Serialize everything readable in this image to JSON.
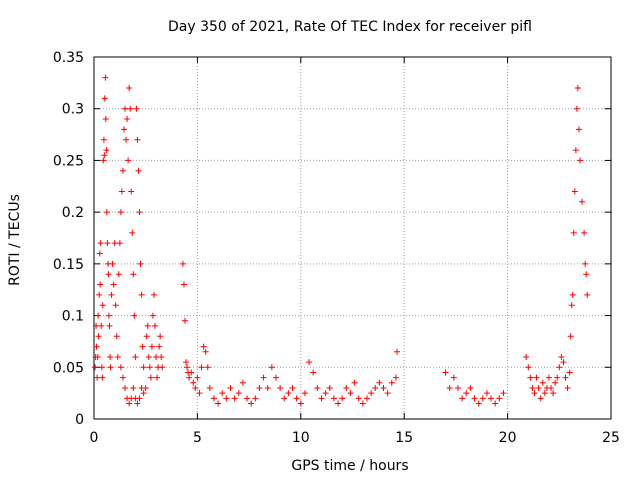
{
  "chart_data": {
    "type": "scatter",
    "title": "Day 350 of 2021, Rate Of TEC Index for receiver pifl",
    "xlabel": "GPS time / hours",
    "ylabel": "ROTI / TECUs",
    "xlim": [
      0,
      25
    ],
    "ylim": [
      0,
      0.35
    ],
    "x_ticks": [
      0,
      5,
      10,
      15,
      20,
      25
    ],
    "y_ticks": [
      0,
      0.05,
      0.1,
      0.15,
      0.2,
      0.25,
      0.3,
      0.35
    ],
    "x_tick_labels": [
      "0",
      "5",
      "10",
      "15",
      "20",
      "25"
    ],
    "y_tick_labels": [
      "0",
      "0.05",
      "0.1",
      "0.15",
      "0.2",
      "0.25",
      "0.3",
      "0.35"
    ],
    "grid": true,
    "marker": "+",
    "color": "#ff0000",
    "series": [
      {
        "name": "ROTI",
        "points": [
          [
            0.05,
            0.05
          ],
          [
            0.08,
            0.06
          ],
          [
            0.1,
            0.09
          ],
          [
            0.12,
            0.07
          ],
          [
            0.15,
            0.04
          ],
          [
            0.18,
            0.06
          ],
          [
            0.2,
            0.1
          ],
          [
            0.22,
            0.08
          ],
          [
            0.25,
            0.12
          ],
          [
            0.28,
            0.16
          ],
          [
            0.3,
            0.13
          ],
          [
            0.32,
            0.17
          ],
          [
            0.35,
            0.09
          ],
          [
            0.38,
            0.05
          ],
          [
            0.4,
            0.04
          ],
          [
            0.42,
            0.11
          ],
          [
            0.45,
            0.25
          ],
          [
            0.48,
            0.27
          ],
          [
            0.5,
            0.255
          ],
          [
            0.52,
            0.31
          ],
          [
            0.55,
            0.33
          ],
          [
            0.57,
            0.29
          ],
          [
            0.6,
            0.26
          ],
          [
            0.62,
            0.2
          ],
          [
            0.65,
            0.17
          ],
          [
            0.68,
            0.15
          ],
          [
            0.7,
            0.14
          ],
          [
            0.72,
            0.1
          ],
          [
            0.75,
            0.09
          ],
          [
            0.78,
            0.06
          ],
          [
            0.8,
            0.05
          ],
          [
            0.85,
            0.12
          ],
          [
            0.9,
            0.15
          ],
          [
            0.95,
            0.13
          ],
          [
            1.0,
            0.17
          ],
          [
            1.05,
            0.11
          ],
          [
            1.1,
            0.08
          ],
          [
            1.15,
            0.06
          ],
          [
            1.2,
            0.14
          ],
          [
            1.25,
            0.17
          ],
          [
            1.3,
            0.2
          ],
          [
            1.35,
            0.22
          ],
          [
            1.4,
            0.24
          ],
          [
            1.45,
            0.28
          ],
          [
            1.5,
            0.3
          ],
          [
            1.55,
            0.27
          ],
          [
            1.6,
            0.29
          ],
          [
            1.65,
            0.25
          ],
          [
            1.7,
            0.32
          ],
          [
            1.75,
            0.3
          ],
          [
            1.8,
            0.22
          ],
          [
            1.85,
            0.18
          ],
          [
            1.9,
            0.14
          ],
          [
            1.95,
            0.1
          ],
          [
            2.0,
            0.06
          ],
          [
            2.05,
            0.3
          ],
          [
            2.1,
            0.27
          ],
          [
            2.15,
            0.24
          ],
          [
            2.2,
            0.2
          ],
          [
            2.25,
            0.15
          ],
          [
            2.3,
            0.12
          ],
          [
            2.35,
            0.07
          ],
          [
            2.4,
            0.05
          ],
          [
            1.3,
            0.05
          ],
          [
            1.4,
            0.04
          ],
          [
            1.5,
            0.03
          ],
          [
            1.6,
            0.02
          ],
          [
            1.7,
            0.015
          ],
          [
            1.8,
            0.02
          ],
          [
            1.9,
            0.03
          ],
          [
            2.0,
            0.02
          ],
          [
            2.1,
            0.015
          ],
          [
            2.2,
            0.02
          ],
          [
            2.3,
            0.03
          ],
          [
            2.4,
            0.025
          ],
          [
            2.5,
            0.03
          ],
          [
            2.55,
            0.08
          ],
          [
            2.6,
            0.09
          ],
          [
            2.65,
            0.06
          ],
          [
            2.7,
            0.05
          ],
          [
            2.75,
            0.04
          ],
          [
            2.8,
            0.07
          ],
          [
            2.85,
            0.1
          ],
          [
            2.9,
            0.12
          ],
          [
            2.95,
            0.09
          ],
          [
            3.0,
            0.06
          ],
          [
            3.05,
            0.04
          ],
          [
            3.1,
            0.05
          ],
          [
            3.15,
            0.07
          ],
          [
            3.2,
            0.08
          ],
          [
            3.25,
            0.06
          ],
          [
            3.3,
            0.05
          ],
          [
            4.3,
            0.15
          ],
          [
            4.35,
            0.13
          ],
          [
            4.4,
            0.095
          ],
          [
            4.45,
            0.055
          ],
          [
            4.5,
            0.05
          ],
          [
            4.55,
            0.045
          ],
          [
            4.6,
            0.04
          ],
          [
            4.7,
            0.045
          ],
          [
            4.8,
            0.035
          ],
          [
            4.9,
            0.03
          ],
          [
            5.0,
            0.04
          ],
          [
            5.1,
            0.025
          ],
          [
            5.2,
            0.05
          ],
          [
            5.3,
            0.07
          ],
          [
            5.4,
            0.065
          ],
          [
            5.5,
            0.05
          ],
          [
            5.6,
            0.03
          ],
          [
            5.8,
            0.02
          ],
          [
            6.0,
            0.015
          ],
          [
            6.2,
            0.025
          ],
          [
            6.4,
            0.02
          ],
          [
            6.6,
            0.03
          ],
          [
            6.8,
            0.02
          ],
          [
            7.0,
            0.025
          ],
          [
            7.2,
            0.035
          ],
          [
            7.4,
            0.02
          ],
          [
            7.6,
            0.015
          ],
          [
            7.8,
            0.02
          ],
          [
            8.0,
            0.03
          ],
          [
            8.2,
            0.04
          ],
          [
            8.4,
            0.03
          ],
          [
            8.6,
            0.05
          ],
          [
            8.8,
            0.04
          ],
          [
            9.0,
            0.03
          ],
          [
            9.2,
            0.02
          ],
          [
            9.4,
            0.025
          ],
          [
            9.6,
            0.03
          ],
          [
            9.8,
            0.02
          ],
          [
            10.0,
            0.015
          ],
          [
            10.2,
            0.025
          ],
          [
            10.4,
            0.055
          ],
          [
            10.6,
            0.045
          ],
          [
            10.8,
            0.03
          ],
          [
            11.0,
            0.02
          ],
          [
            11.2,
            0.025
          ],
          [
            11.4,
            0.03
          ],
          [
            11.6,
            0.02
          ],
          [
            11.8,
            0.015
          ],
          [
            12.0,
            0.02
          ],
          [
            12.2,
            0.03
          ],
          [
            12.4,
            0.025
          ],
          [
            12.6,
            0.035
          ],
          [
            12.8,
            0.02
          ],
          [
            13.0,
            0.015
          ],
          [
            13.2,
            0.02
          ],
          [
            13.4,
            0.025
          ],
          [
            13.6,
            0.03
          ],
          [
            13.8,
            0.035
          ],
          [
            14.0,
            0.03
          ],
          [
            14.2,
            0.025
          ],
          [
            14.4,
            0.035
          ],
          [
            14.6,
            0.04
          ],
          [
            14.65,
            0.065
          ],
          [
            17.0,
            0.045
          ],
          [
            17.2,
            0.03
          ],
          [
            17.4,
            0.04
          ],
          [
            17.6,
            0.03
          ],
          [
            17.8,
            0.02
          ],
          [
            18.0,
            0.025
          ],
          [
            18.2,
            0.03
          ],
          [
            18.4,
            0.02
          ],
          [
            18.6,
            0.015
          ],
          [
            18.8,
            0.02
          ],
          [
            19.0,
            0.025
          ],
          [
            19.2,
            0.02
          ],
          [
            19.4,
            0.015
          ],
          [
            19.6,
            0.02
          ],
          [
            19.8,
            0.025
          ],
          [
            20.9,
            0.06
          ],
          [
            21.0,
            0.05
          ],
          [
            21.1,
            0.04
          ],
          [
            21.2,
            0.03
          ],
          [
            21.3,
            0.025
          ],
          [
            21.4,
            0.04
          ],
          [
            21.5,
            0.03
          ],
          [
            21.6,
            0.02
          ],
          [
            21.7,
            0.035
          ],
          [
            21.8,
            0.025
          ],
          [
            21.9,
            0.03
          ],
          [
            22.0,
            0.04
          ],
          [
            22.1,
            0.03
          ],
          [
            22.2,
            0.025
          ],
          [
            22.3,
            0.035
          ],
          [
            22.4,
            0.04
          ],
          [
            22.5,
            0.05
          ],
          [
            22.6,
            0.06
          ],
          [
            22.7,
            0.055
          ],
          [
            22.8,
            0.04
          ],
          [
            22.9,
            0.03
          ],
          [
            23.0,
            0.045
          ],
          [
            23.05,
            0.08
          ],
          [
            23.1,
            0.11
          ],
          [
            23.15,
            0.12
          ],
          [
            23.2,
            0.18
          ],
          [
            23.25,
            0.22
          ],
          [
            23.3,
            0.26
          ],
          [
            23.35,
            0.3
          ],
          [
            23.4,
            0.32
          ],
          [
            23.45,
            0.28
          ],
          [
            23.5,
            0.25
          ],
          [
            23.6,
            0.21
          ],
          [
            23.7,
            0.18
          ],
          [
            23.75,
            0.15
          ],
          [
            23.8,
            0.14
          ],
          [
            23.85,
            0.12
          ]
        ]
      }
    ]
  }
}
